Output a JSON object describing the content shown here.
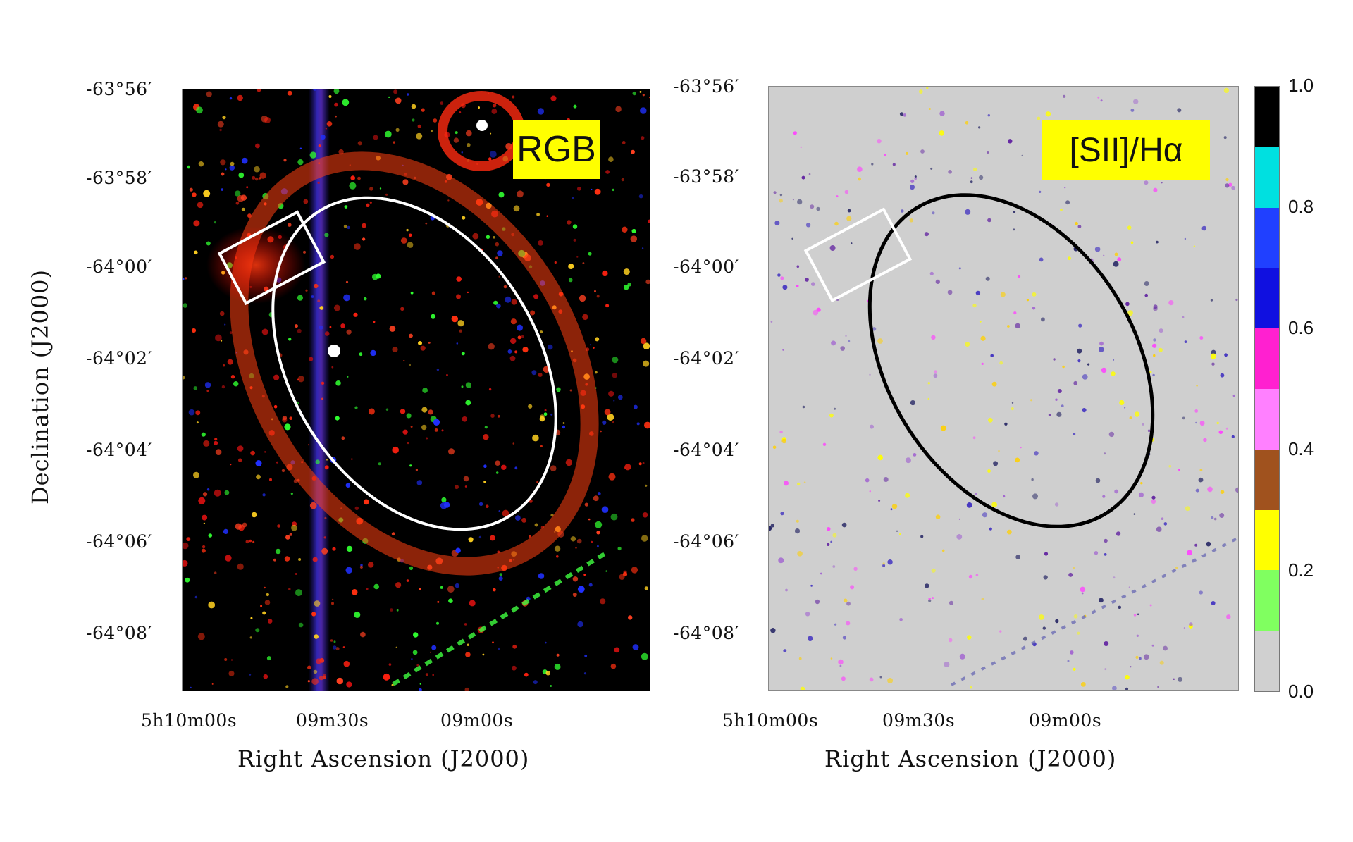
{
  "left_panel": {
    "badge": "RGB",
    "dec_ticks": [
      "-63°56′",
      "-63°58′",
      "-64°00′",
      "-64°02′",
      "-64°04′",
      "-64°06′",
      "-64°08′"
    ],
    "ra_ticks": [
      "5h10m00s",
      "09m30s",
      "09m00s"
    ],
    "xlabel": "Right Ascension (J2000)",
    "ylabel": "Declination (J2000)"
  },
  "right_panel": {
    "badge": "[SII]/Hα",
    "dec_ticks": [
      "-63°56′",
      "-63°58′",
      "-64°00′",
      "-64°02′",
      "-64°04′",
      "-64°06′",
      "-64°08′"
    ],
    "ra_ticks": [
      "5h10m00s",
      "09m30s",
      "09m00s"
    ],
    "xlabel": "Right Ascension (J2000)"
  },
  "colorbar": {
    "labels": [
      "1.0",
      "0.8",
      "0.6",
      "0.4",
      "0.2",
      "0.0"
    ],
    "segments": [
      "#d0d0d0",
      "#80ff60",
      "#ffff00",
      "#a0521e",
      "#ff80ff",
      "#ff20d0",
      "#1010e0",
      "#2040ff",
      "#00e0e0",
      "#000000"
    ]
  },
  "colors": {
    "left_bg": "#000000",
    "right_bg": "#cfcfcf",
    "overlay_left": "#ffffff",
    "overlay_right": "#000000",
    "badge_bg": "#ffff00"
  }
}
